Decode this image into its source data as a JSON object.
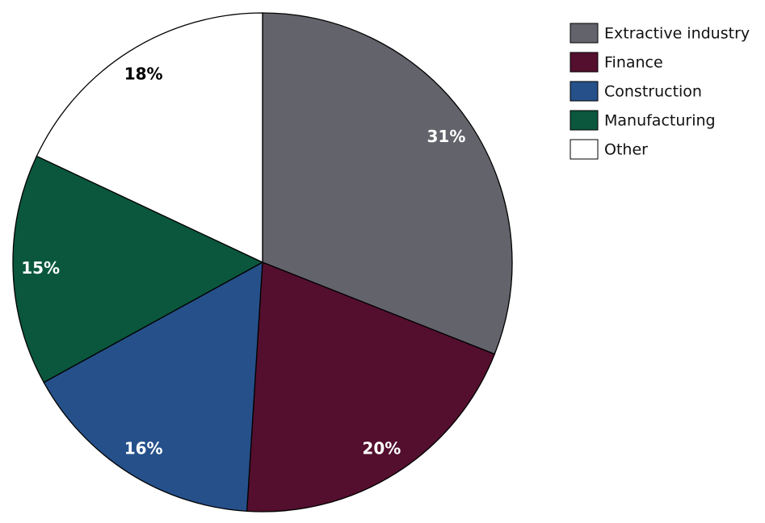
{
  "chart_data": {
    "type": "pie",
    "categories": [
      "Extractive industry",
      "Finance",
      "Construction",
      "Manufacturing",
      "Other"
    ],
    "values": [
      31,
      20,
      16,
      15,
      18
    ],
    "value_labels": [
      "31%",
      "20%",
      "16%",
      "15%",
      "18%"
    ],
    "colors": [
      "#63636b",
      "#540f2e",
      "#26508a",
      "#0a573d",
      "#ffffff"
    ],
    "legend": "right"
  }
}
